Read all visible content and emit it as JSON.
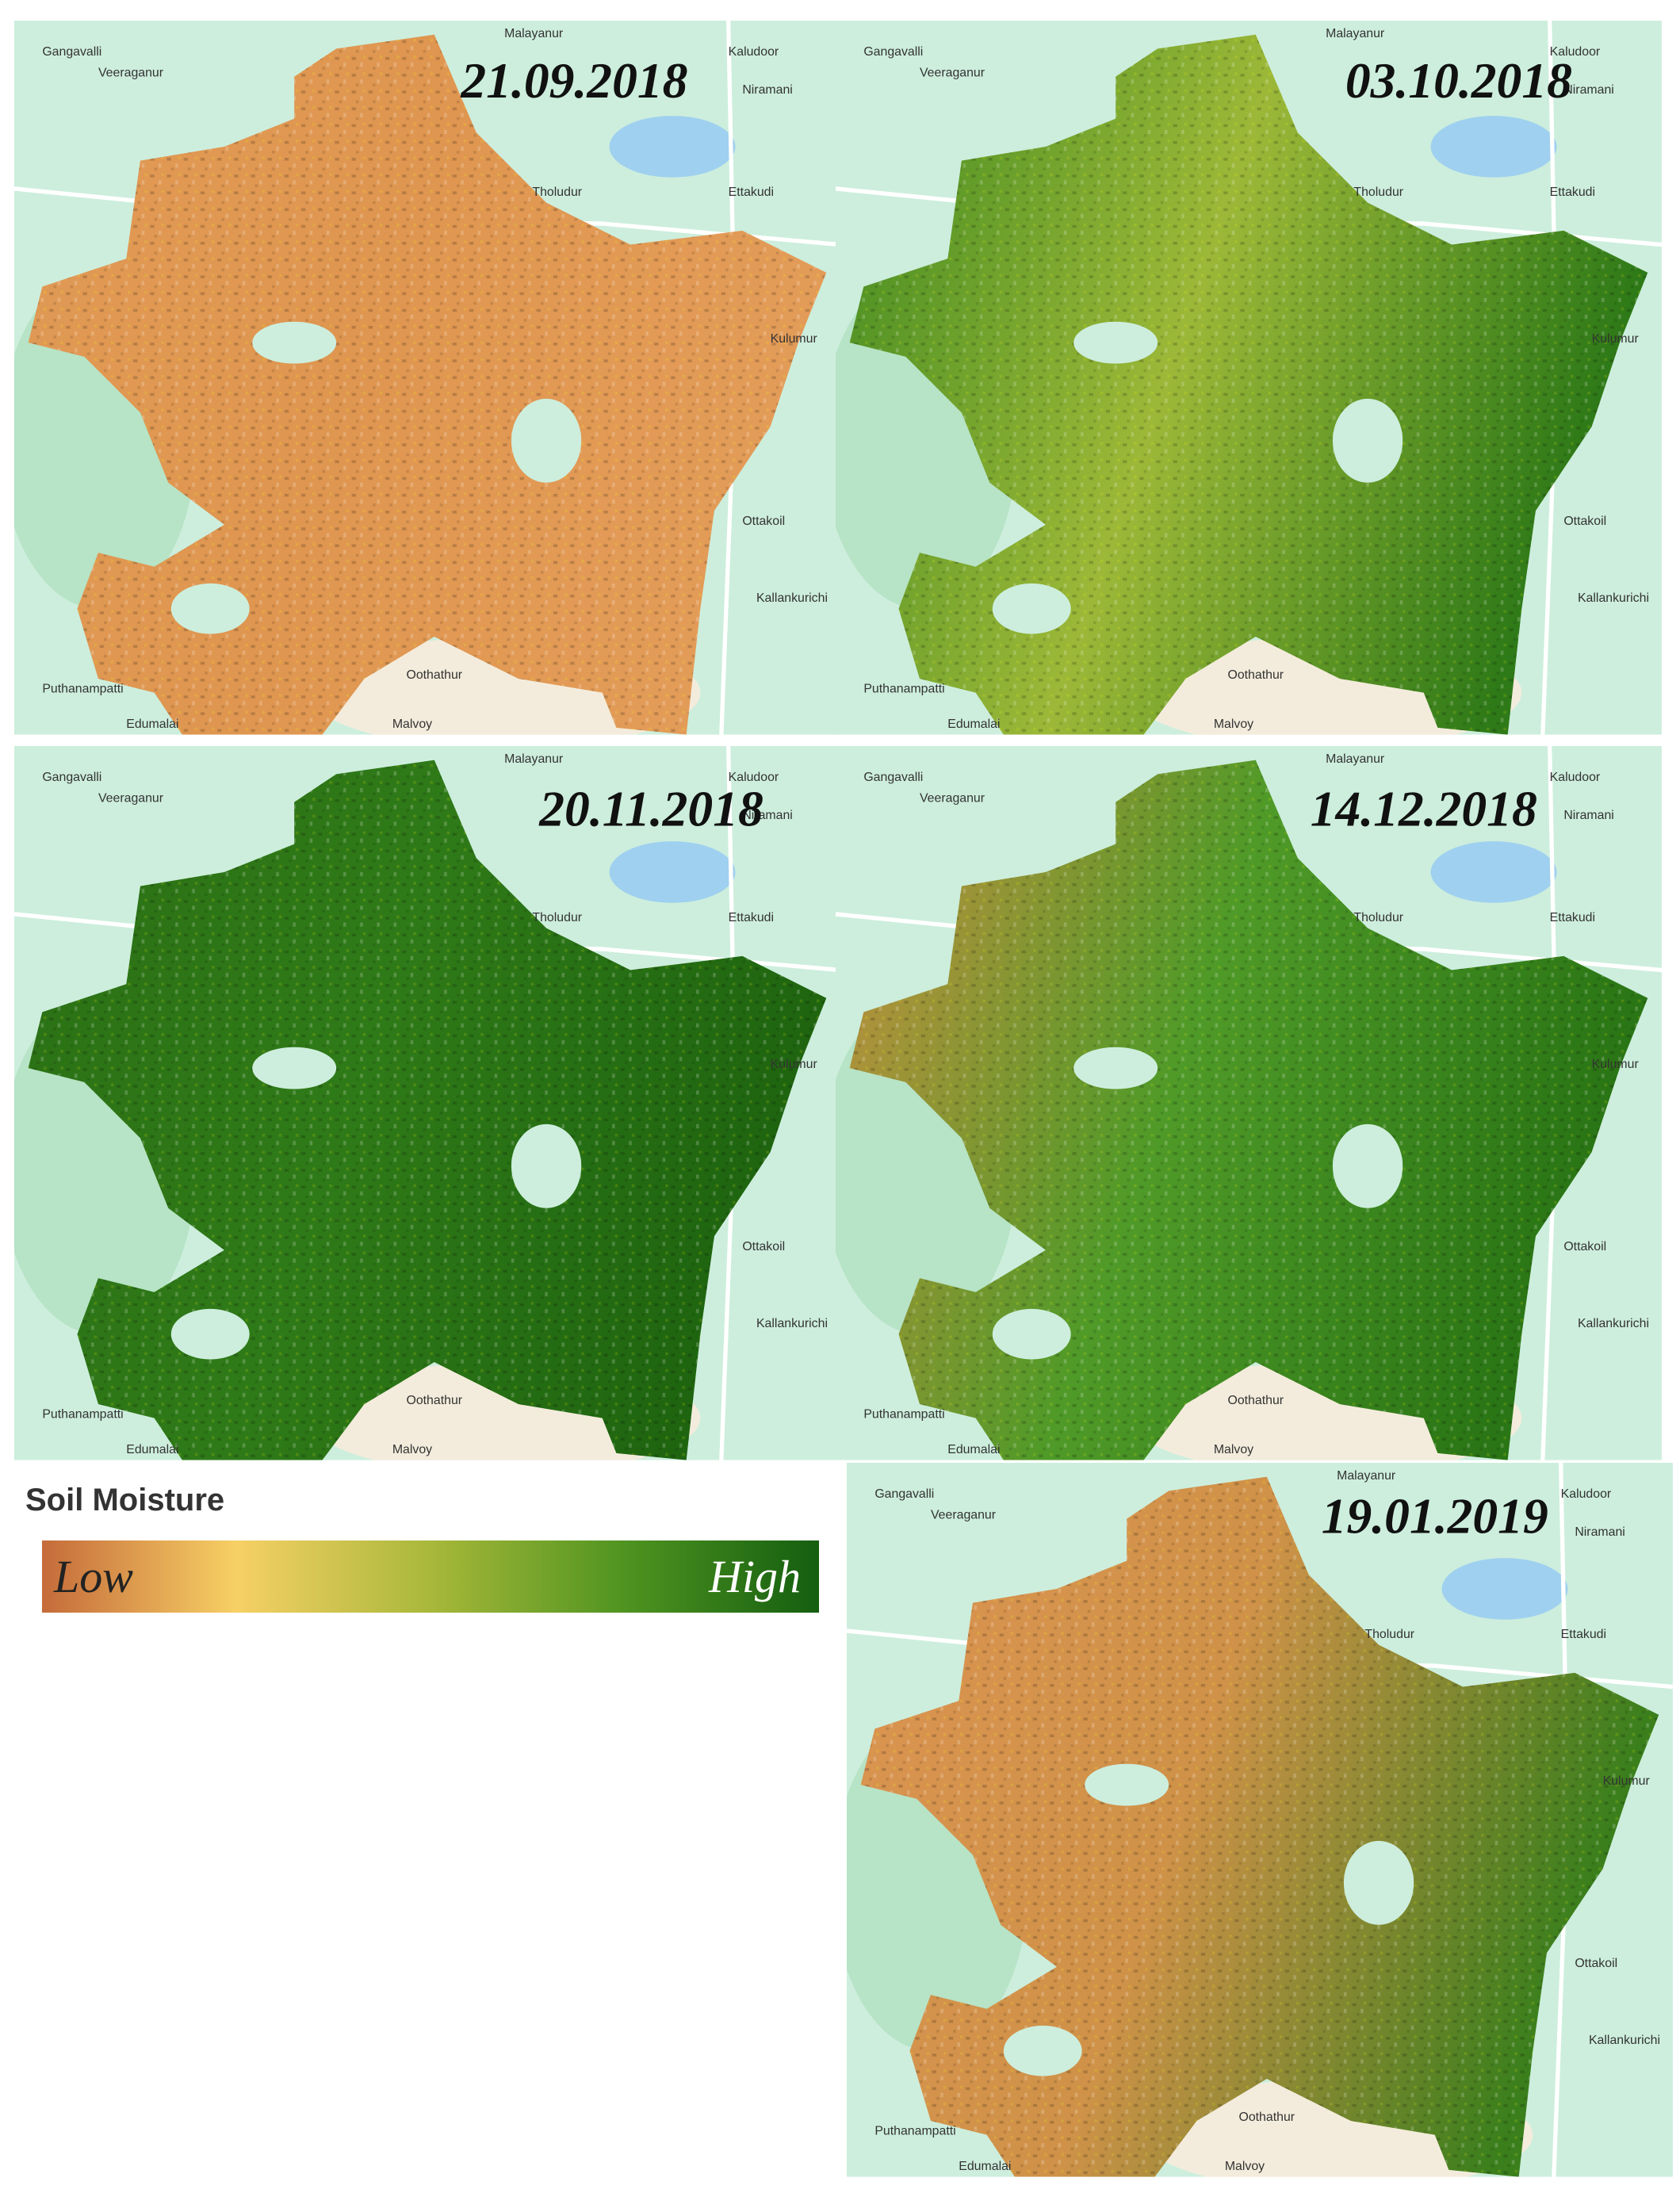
{
  "legend": {
    "title": "Soil Moisture",
    "low": "Low",
    "high": "High"
  },
  "panels": [
    {
      "date": "21.09.2018",
      "colors": [
        "#e09a55",
        "#df9650",
        "#e39c58"
      ]
    },
    {
      "date": "03.10.2018",
      "colors": [
        "#3f8a20",
        "#9cb838",
        "#2f7a18"
      ]
    },
    {
      "date": "20.11.2018",
      "colors": [
        "#2b7015",
        "#2f7a18",
        "#1f6510"
      ]
    },
    {
      "date": "14.12.2018",
      "colors": [
        "#c89040",
        "#4f9a28",
        "#2a7515"
      ]
    },
    {
      "date": "19.01.2019",
      "colors": [
        "#dc9452",
        "#cf9248",
        "#3a7f1c"
      ]
    }
  ],
  "places": [
    "Malayanur",
    "Gangavalli",
    "Veeraganur",
    "Kaludoor",
    "Niramani",
    "Tholudur",
    "Ettakudi",
    "Kulumur",
    "Ottakoil",
    "Kallankurichi",
    "Puthanampatti",
    "Oothathur",
    "Malvoy",
    "Edumalai"
  ]
}
